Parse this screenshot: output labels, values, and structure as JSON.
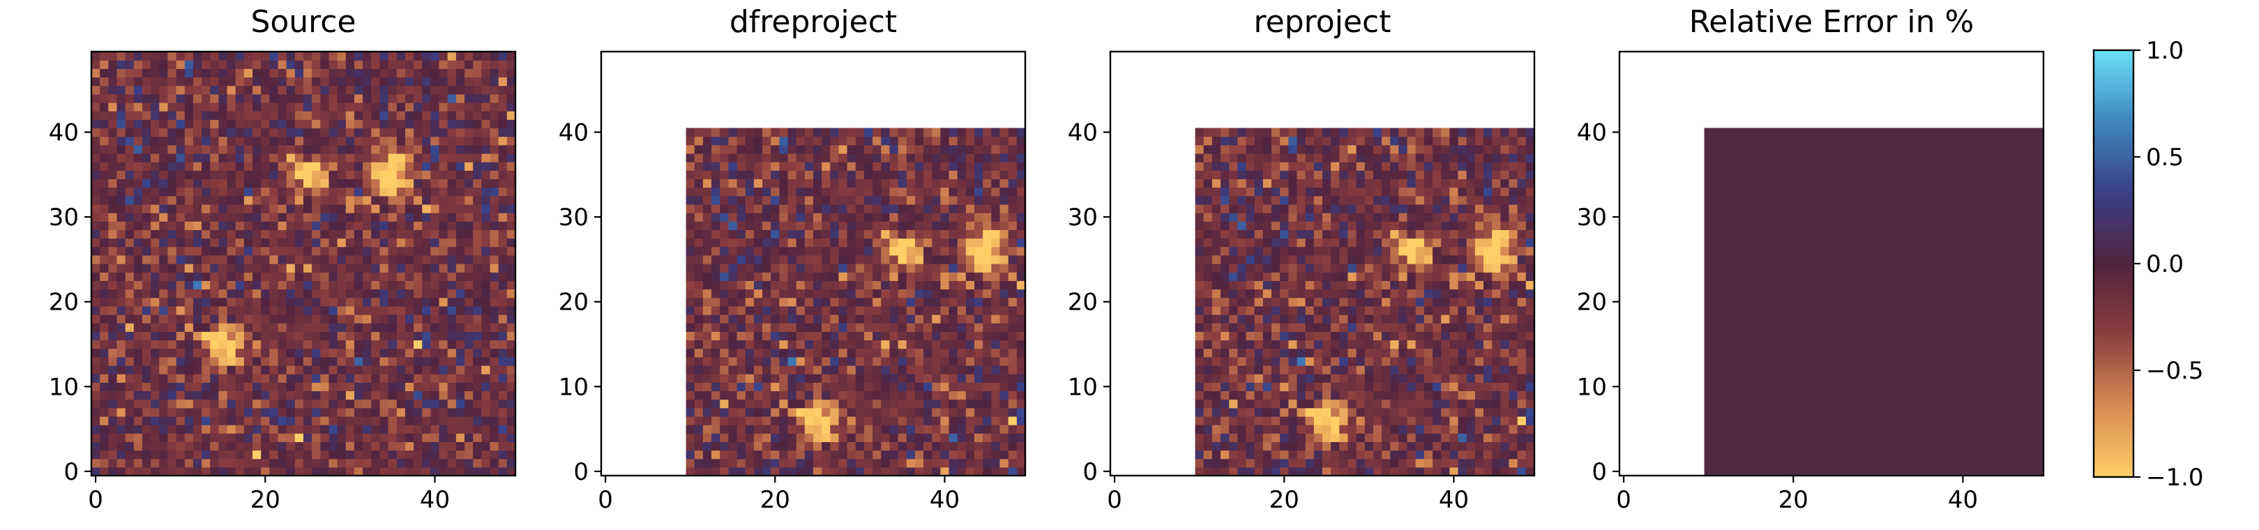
{
  "figure": {
    "colormap": {
      "name": "managua",
      "stops": [
        "#ffcf67",
        "#d98a53",
        "#8a3d3f",
        "#52243f",
        "#3a3f86",
        "#3f86bf",
        "#6be0f8"
      ],
      "colorbar_ticks": [
        "1.0",
        "0.5",
        "0.0",
        "−0.5",
        "−1.0"
      ]
    }
  },
  "chart_data": [
    {
      "type": "heatmap",
      "title": "Source",
      "image_shape": [
        50,
        50
      ],
      "xlim": [
        -0.5,
        49.5
      ],
      "ylim": [
        -0.5,
        49.5
      ],
      "xticks": [
        "0",
        "20",
        "40"
      ],
      "yticks": [
        "0",
        "10",
        "20",
        "30",
        "40"
      ],
      "valid_region": {
        "x": [
          0,
          49
        ],
        "y": [
          0,
          49
        ]
      },
      "sources": [
        {
          "x": 15,
          "y": 15
        },
        {
          "x": 25,
          "y": 35
        },
        {
          "x": 35,
          "y": 35
        }
      ]
    },
    {
      "type": "heatmap",
      "title": "dfreproject",
      "image_shape": [
        50,
        50
      ],
      "xlim": [
        -0.5,
        49.5
      ],
      "ylim": [
        -0.5,
        49.5
      ],
      "xticks": [
        "0",
        "20",
        "40"
      ],
      "yticks": [
        "0",
        "10",
        "20",
        "30",
        "40"
      ],
      "valid_region": {
        "x": [
          10,
          49
        ],
        "y": [
          0,
          40
        ]
      },
      "sources": [
        {
          "x": 25,
          "y": 6
        },
        {
          "x": 35,
          "y": 26
        },
        {
          "x": 45,
          "y": 26
        }
      ]
    },
    {
      "type": "heatmap",
      "title": "reproject",
      "image_shape": [
        50,
        50
      ],
      "xlim": [
        -0.5,
        49.5
      ],
      "ylim": [
        -0.5,
        49.5
      ],
      "xticks": [
        "0",
        "20",
        "40"
      ],
      "yticks": [
        "0",
        "10",
        "20",
        "30",
        "40"
      ],
      "valid_region": {
        "x": [
          10,
          49
        ],
        "y": [
          0,
          40
        ]
      },
      "sources": [
        {
          "x": 25,
          "y": 6
        },
        {
          "x": 35,
          "y": 26
        },
        {
          "x": 45,
          "y": 26
        }
      ]
    },
    {
      "type": "heatmap",
      "title": "Relative Error in %",
      "image_shape": [
        50,
        50
      ],
      "xlim": [
        -0.5,
        49.5
      ],
      "ylim": [
        -0.5,
        49.5
      ],
      "xticks": [
        "0",
        "20",
        "40"
      ],
      "yticks": [
        "0",
        "10",
        "20",
        "30",
        "40"
      ],
      "valid_region": {
        "x": [
          10,
          49
        ],
        "y": [
          0,
          40
        ]
      },
      "constant_value": 0.0,
      "fill_color": "#532844",
      "colorbar": {
        "ticks": [
          "1.0",
          "0.5",
          "0.0",
          "−0.5",
          "−1.0"
        ],
        "range": [
          -1.0,
          1.0
        ]
      }
    }
  ]
}
